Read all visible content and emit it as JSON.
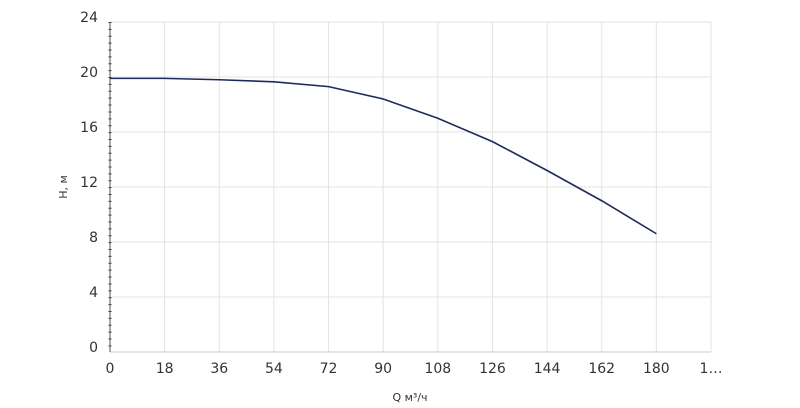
{
  "chart_data": {
    "type": "line",
    "x_label": "Q м³/ч",
    "y_label": "H, м",
    "x": [
      0,
      18,
      36,
      54,
      72,
      90,
      108,
      126,
      144,
      162,
      180
    ],
    "series": [
      {
        "color": "#1f2a5c",
        "values": [
          19.9,
          19.9,
          19.8,
          19.65,
          19.3,
          18.4,
          17.0,
          15.3,
          13.2,
          11.0,
          8.6
        ]
      }
    ],
    "xlim": [
      0,
      198
    ],
    "xticks": [
      0,
      18,
      36,
      54,
      72,
      90,
      108,
      126,
      144,
      162,
      180,
      {
        "value": 198,
        "label": "1…"
      }
    ],
    "ylim": [
      0,
      24
    ],
    "yticks": [
      0,
      4,
      8,
      12,
      16,
      20,
      24
    ],
    "grid": true
  }
}
